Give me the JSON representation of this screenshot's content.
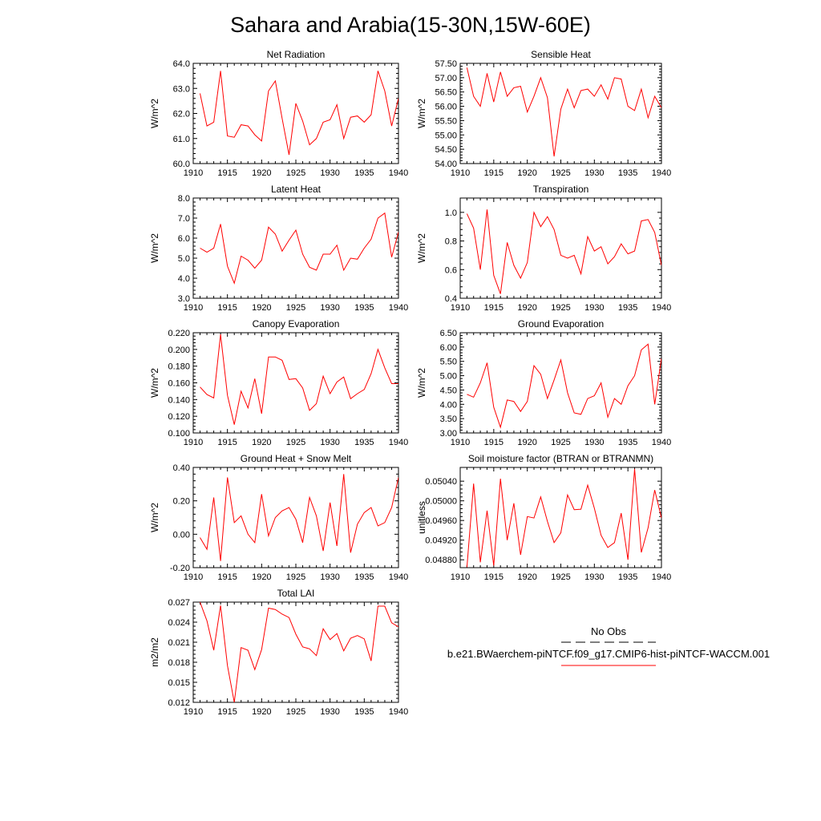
{
  "title": "Sahara and Arabia(15-30N,15W-60E)",
  "x_tick_labels": [
    "1910",
    "1915",
    "1920",
    "1925",
    "1930",
    "1935",
    "1940"
  ],
  "legend": {
    "obs_label": "No Obs",
    "case_label": "b.e21.BWaerchem-piNTCF.f09_g17.CMIP6-hist-piNTCF-WACCM.001",
    "obs_color": "#000000",
    "case_color": "#ff0000"
  },
  "series_color": "#ff0000",
  "chart_data": [
    {
      "type": "line",
      "title": "Net Radiation",
      "ylabel": "W/m^2",
      "x": [
        1911,
        1912,
        1913,
        1914,
        1915,
        1916,
        1917,
        1918,
        1919,
        1920,
        1921,
        1922,
        1923,
        1924,
        1925,
        1926,
        1927,
        1928,
        1929,
        1930,
        1931,
        1932,
        1933,
        1934,
        1935,
        1936,
        1937,
        1938,
        1939,
        1940
      ],
      "values": [
        62.8,
        61.5,
        61.65,
        63.7,
        61.1,
        61.05,
        61.55,
        61.5,
        61.15,
        60.9,
        62.9,
        63.3,
        61.8,
        60.35,
        62.4,
        61.7,
        60.75,
        61.0,
        61.65,
        61.75,
        62.35,
        61.0,
        61.85,
        61.9,
        61.65,
        61.95,
        63.7,
        62.9,
        61.5,
        62.6
      ],
      "xlim": [
        1910,
        1940
      ],
      "ylim": [
        60.0,
        64.0
      ],
      "yticks": [
        "60.0",
        "61.0",
        "62.0",
        "63.0",
        "64.0"
      ]
    },
    {
      "type": "line",
      "title": "Sensible Heat",
      "ylabel": "W/m^2",
      "x": [
        1911,
        1912,
        1913,
        1914,
        1915,
        1916,
        1917,
        1918,
        1919,
        1920,
        1921,
        1922,
        1923,
        1924,
        1925,
        1926,
        1927,
        1928,
        1929,
        1930,
        1931,
        1932,
        1933,
        1934,
        1935,
        1936,
        1937,
        1938,
        1939,
        1940
      ],
      "values": [
        57.35,
        56.35,
        56.0,
        57.15,
        56.15,
        57.2,
        56.35,
        56.65,
        56.7,
        55.8,
        56.35,
        57.0,
        56.3,
        54.25,
        55.9,
        56.6,
        55.95,
        56.55,
        56.6,
        56.35,
        56.75,
        56.25,
        57.0,
        56.95,
        56.0,
        55.85,
        56.6,
        55.6,
        56.35,
        55.95
      ],
      "xlim": [
        1910,
        1940
      ],
      "ylim": [
        54.0,
        57.5
      ],
      "yticks": [
        "54.00",
        "54.50",
        "55.00",
        "55.50",
        "56.00",
        "56.50",
        "57.00",
        "57.50"
      ]
    },
    {
      "type": "line",
      "title": "Latent Heat",
      "ylabel": "W/m^2",
      "x": [
        1911,
        1912,
        1913,
        1914,
        1915,
        1916,
        1917,
        1918,
        1919,
        1920,
        1921,
        1922,
        1923,
        1924,
        1925,
        1926,
        1927,
        1928,
        1929,
        1930,
        1931,
        1932,
        1933,
        1934,
        1935,
        1936,
        1937,
        1938,
        1939,
        1940
      ],
      "values": [
        5.5,
        5.3,
        5.5,
        6.7,
        4.6,
        3.75,
        5.1,
        4.9,
        4.5,
        4.9,
        6.55,
        6.2,
        5.35,
        5.9,
        6.4,
        5.2,
        4.55,
        4.4,
        5.2,
        5.2,
        5.65,
        4.4,
        5.0,
        4.95,
        5.5,
        5.95,
        7.0,
        7.25,
        5.05,
        6.3
      ],
      "xlim": [
        1910,
        1940
      ],
      "ylim": [
        3.0,
        8.0
      ],
      "yticks": [
        "3.0",
        "4.0",
        "5.0",
        "6.0",
        "7.0",
        "8.0"
      ]
    },
    {
      "type": "line",
      "title": "Transpiration",
      "ylabel": "W/m^2",
      "x": [
        1911,
        1912,
        1913,
        1914,
        1915,
        1916,
        1917,
        1918,
        1919,
        1920,
        1921,
        1922,
        1923,
        1924,
        1925,
        1926,
        1927,
        1928,
        1929,
        1930,
        1931,
        1932,
        1933,
        1934,
        1935,
        1936,
        1937,
        1938,
        1939,
        1940
      ],
      "values": [
        0.99,
        0.89,
        0.6,
        1.02,
        0.56,
        0.43,
        0.79,
        0.63,
        0.54,
        0.65,
        1.0,
        0.9,
        0.97,
        0.88,
        0.7,
        0.68,
        0.7,
        0.57,
        0.83,
        0.73,
        0.76,
        0.64,
        0.69,
        0.78,
        0.71,
        0.73,
        0.94,
        0.95,
        0.86,
        0.63
      ],
      "xlim": [
        1910,
        1940
      ],
      "ylim": [
        0.4,
        1.1
      ],
      "yticks": [
        "0.4",
        "0.6",
        "0.8",
        "1.0"
      ]
    },
    {
      "type": "line",
      "title": "Canopy Evaporation",
      "ylabel": "W/m^2",
      "x": [
        1911,
        1912,
        1913,
        1914,
        1915,
        1916,
        1917,
        1918,
        1919,
        1920,
        1921,
        1922,
        1923,
        1924,
        1925,
        1926,
        1927,
        1928,
        1929,
        1930,
        1931,
        1932,
        1933,
        1934,
        1935,
        1936,
        1937,
        1938,
        1939,
        1940
      ],
      "values": [
        0.155,
        0.146,
        0.142,
        0.218,
        0.145,
        0.11,
        0.15,
        0.13,
        0.165,
        0.123,
        0.191,
        0.191,
        0.187,
        0.164,
        0.165,
        0.154,
        0.127,
        0.135,
        0.168,
        0.147,
        0.161,
        0.167,
        0.141,
        0.147,
        0.152,
        0.171,
        0.2,
        0.178,
        0.159,
        0.159
      ],
      "xlim": [
        1910,
        1940
      ],
      "ylim": [
        0.1,
        0.22
      ],
      "yticks": [
        "0.100",
        "0.120",
        "0.140",
        "0.160",
        "0.180",
        "0.200",
        "0.220"
      ]
    },
    {
      "type": "line",
      "title": "Ground Evaporation",
      "ylabel": "W/m^2",
      "x": [
        1911,
        1912,
        1913,
        1914,
        1915,
        1916,
        1917,
        1918,
        1919,
        1920,
        1921,
        1922,
        1923,
        1924,
        1925,
        1926,
        1927,
        1928,
        1929,
        1930,
        1931,
        1932,
        1933,
        1934,
        1935,
        1936,
        1937,
        1938,
        1939,
        1940
      ],
      "values": [
        4.35,
        4.25,
        4.75,
        5.45,
        3.9,
        3.2,
        4.15,
        4.1,
        3.75,
        4.1,
        5.35,
        5.05,
        4.2,
        4.85,
        5.55,
        4.4,
        3.7,
        3.65,
        4.2,
        4.3,
        4.75,
        3.55,
        4.2,
        4.0,
        4.65,
        5.0,
        5.9,
        6.1,
        4.0,
        5.6
      ],
      "xlim": [
        1910,
        1940
      ],
      "ylim": [
        3.0,
        6.5
      ],
      "yticks": [
        "3.00",
        "3.50",
        "4.00",
        "4.50",
        "5.00",
        "5.50",
        "6.00",
        "6.50"
      ]
    },
    {
      "type": "line",
      "title": "Ground Heat + Snow Melt",
      "ylabel": "W/m^2",
      "x": [
        1911,
        1912,
        1913,
        1914,
        1915,
        1916,
        1917,
        1918,
        1919,
        1920,
        1921,
        1922,
        1923,
        1924,
        1925,
        1926,
        1927,
        1928,
        1929,
        1930,
        1931,
        1932,
        1933,
        1934,
        1935,
        1936,
        1937,
        1938,
        1939,
        1940
      ],
      "values": [
        -0.02,
        -0.09,
        0.22,
        -0.16,
        0.34,
        0.07,
        0.11,
        0.0,
        -0.05,
        0.24,
        -0.01,
        0.1,
        0.14,
        0.16,
        0.09,
        -0.05,
        0.22,
        0.11,
        -0.1,
        0.19,
        -0.07,
        0.36,
        -0.11,
        0.06,
        0.13,
        0.16,
        0.05,
        0.07,
        0.16,
        0.34
      ],
      "xlim": [
        1910,
        1940
      ],
      "ylim": [
        -0.2,
        0.4
      ],
      "yticks": [
        "-0.20",
        "0.00",
        "0.20",
        "0.40"
      ]
    },
    {
      "type": "line",
      "title": "Soil moisture factor (BTRAN or BTRANMN)",
      "ylabel": "unitless",
      "x": [
        1911,
        1912,
        1913,
        1914,
        1915,
        1916,
        1917,
        1918,
        1919,
        1920,
        1921,
        1922,
        1923,
        1924,
        1925,
        1926,
        1927,
        1928,
        1929,
        1930,
        1931,
        1932,
        1933,
        1934,
        1935,
        1936,
        1937,
        1938,
        1939,
        1940
      ],
      "values": [
        0.04865,
        0.05035,
        0.04875,
        0.0498,
        0.04868,
        0.05045,
        0.0492,
        0.04995,
        0.0489,
        0.04968,
        0.04965,
        0.05008,
        0.04958,
        0.04915,
        0.04935,
        0.05012,
        0.04982,
        0.04983,
        0.05032,
        0.04985,
        0.0493,
        0.04905,
        0.04915,
        0.04975,
        0.0488,
        0.05065,
        0.04895,
        0.04945,
        0.05022,
        0.04965
      ],
      "xlim": [
        1910,
        1940
      ],
      "ylim": [
        0.04864,
        0.05068
      ],
      "yticks": [
        "0.04880",
        "0.04920",
        "0.04960",
        "0.05000",
        "0.05040"
      ]
    },
    {
      "type": "line",
      "title": "Total LAI",
      "ylabel": "m2/m2",
      "x": [
        1911,
        1912,
        1913,
        1914,
        1915,
        1916,
        1917,
        1918,
        1919,
        1920,
        1921,
        1922,
        1923,
        1924,
        1925,
        1926,
        1927,
        1928,
        1929,
        1930,
        1931,
        1932,
        1933,
        1934,
        1935,
        1936,
        1937,
        1938,
        1939,
        1940
      ],
      "values": [
        0.027,
        0.0242,
        0.0198,
        0.0265,
        0.0175,
        0.012,
        0.0202,
        0.0198,
        0.0169,
        0.0199,
        0.0261,
        0.0259,
        0.0252,
        0.0247,
        0.0222,
        0.0203,
        0.02,
        0.019,
        0.023,
        0.0214,
        0.0223,
        0.0197,
        0.0216,
        0.022,
        0.0215,
        0.0182,
        0.0264,
        0.0264,
        0.0239,
        0.0233
      ],
      "xlim": [
        1910,
        1940
      ],
      "ylim": [
        0.012,
        0.027
      ],
      "yticks": [
        "0.012",
        "0.015",
        "0.018",
        "0.021",
        "0.024",
        "0.027"
      ]
    }
  ]
}
